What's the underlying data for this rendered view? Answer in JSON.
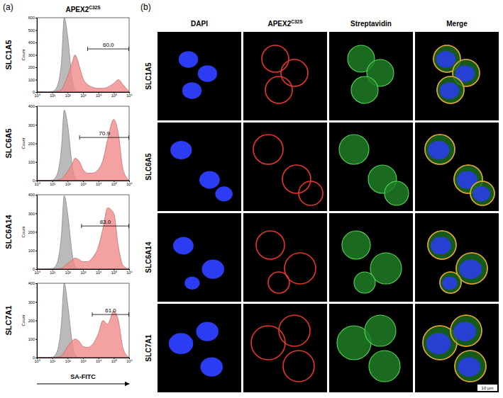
{
  "panel_labels": [
    "(a)",
    "(b)"
  ],
  "panel_a_header": {
    "text": "APEX2",
    "superscript": "C32S"
  },
  "chart_data": [
    {
      "type": "area",
      "title": "SLC1A5",
      "ylabel": "Count",
      "log": "x",
      "x": [
        1,
        3,
        10,
        20,
        40,
        60,
        100,
        200,
        300,
        600,
        1000,
        2000,
        4000,
        10000,
        20000,
        40000,
        100000,
        200000,
        400000,
        1000000
      ],
      "series": [
        {
          "color": "#a9a9a9",
          "values": [
            0,
            0,
            5,
            40,
            250,
            600,
            450,
            100,
            20,
            2,
            0,
            0,
            0,
            0,
            0,
            0,
            0,
            0,
            0,
            0
          ]
        },
        {
          "color": "#f08a8a",
          "values": [
            0,
            0,
            0,
            5,
            20,
            60,
            130,
            240,
            300,
            200,
            110,
            60,
            40,
            30,
            30,
            40,
            70,
            100,
            60,
            0
          ]
        }
      ],
      "xlim": [
        1,
        1000000
      ],
      "xticks": [
        {
          "value": 1,
          "label": "10⁰"
        },
        {
          "value": 10,
          "label": "10¹"
        },
        {
          "value": 100,
          "label": "10²"
        },
        {
          "value": 1000,
          "label": "10³"
        },
        {
          "value": 10000,
          "label": "10⁴"
        },
        {
          "value": 100000,
          "label": "10⁵"
        },
        {
          "value": 1000000,
          "label": "10⁶"
        }
      ],
      "ylim": [
        0,
        600
      ],
      "yticks": [
        0,
        100,
        200,
        300,
        400,
        500,
        600
      ],
      "gate": [
        2000,
        1000000
      ],
      "annotation": "60.0"
    },
    {
      "type": "area",
      "title": "SLC6A5",
      "ylabel": "Count",
      "log": "x",
      "x": [
        1,
        3,
        10,
        20,
        40,
        60,
        100,
        200,
        300,
        600,
        1000,
        2000,
        4000,
        10000,
        20000,
        40000,
        100000,
        200000,
        400000,
        1000000
      ],
      "series": [
        {
          "color": "#a9a9a9",
          "values": [
            0,
            0,
            3,
            30,
            180,
            380,
            300,
            80,
            15,
            0,
            0,
            0,
            0,
            0,
            0,
            0,
            0,
            0,
            0,
            0
          ]
        },
        {
          "color": "#f08a8a",
          "values": [
            0,
            0,
            0,
            3,
            10,
            25,
            50,
            90,
            120,
            100,
            60,
            40,
            40,
            60,
            110,
            220,
            330,
            250,
            60,
            0
          ]
        }
      ],
      "xlim": [
        1,
        1000000
      ],
      "xticks": [
        {
          "value": 1,
          "label": "10⁰"
        },
        {
          "value": 10,
          "label": "10¹"
        },
        {
          "value": 100,
          "label": "10²"
        },
        {
          "value": 1000,
          "label": "10³"
        },
        {
          "value": 10000,
          "label": "10⁴"
        },
        {
          "value": 100000,
          "label": "10⁵"
        },
        {
          "value": 1000000,
          "label": "10⁶"
        }
      ],
      "ylim": [
        0,
        400
      ],
      "yticks": [
        0,
        100,
        200,
        300,
        400
      ],
      "gate": [
        600,
        1000000
      ],
      "annotation": "70.9"
    },
    {
      "type": "area",
      "title": "SLC6A14",
      "ylabel": "Count",
      "log": "x",
      "x": [
        1,
        3,
        10,
        20,
        40,
        60,
        100,
        200,
        300,
        600,
        1000,
        2000,
        4000,
        10000,
        20000,
        40000,
        100000,
        200000,
        400000,
        1000000
      ],
      "series": [
        {
          "color": "#a9a9a9",
          "values": [
            0,
            0,
            3,
            30,
            190,
            395,
            300,
            80,
            15,
            0,
            0,
            0,
            0,
            0,
            0,
            0,
            0,
            0,
            0,
            0
          ]
        },
        {
          "color": "#f08a8a",
          "values": [
            0,
            0,
            0,
            2,
            5,
            15,
            30,
            50,
            60,
            50,
            40,
            40,
            60,
            120,
            220,
            330,
            300,
            120,
            20,
            0
          ]
        }
      ],
      "xlim": [
        1,
        1000000
      ],
      "xticks": [
        {
          "value": 1,
          "label": "10⁰"
        },
        {
          "value": 10,
          "label": "10¹"
        },
        {
          "value": 100,
          "label": "10²"
        },
        {
          "value": 1000,
          "label": "10³"
        },
        {
          "value": 10000,
          "label": "10⁴"
        },
        {
          "value": 100000,
          "label": "10⁵"
        },
        {
          "value": 1000000,
          "label": "10⁶"
        }
      ],
      "ylim": [
        0,
        400
      ],
      "yticks": [
        0,
        100,
        200,
        300,
        400
      ],
      "gate": [
        800,
        1000000
      ],
      "annotation": "83.0"
    },
    {
      "type": "area",
      "title": "SLC7A1",
      "ylabel": "Count",
      "xlabel": "SA-FITC",
      "log": "x",
      "x": [
        1,
        3,
        10,
        20,
        40,
        60,
        100,
        200,
        300,
        600,
        1000,
        2000,
        4000,
        10000,
        20000,
        40000,
        100000,
        200000,
        400000,
        1000000
      ],
      "series": [
        {
          "color": "#a9a9a9",
          "values": [
            0,
            0,
            3,
            30,
            190,
            400,
            290,
            80,
            15,
            0,
            0,
            0,
            0,
            0,
            0,
            0,
            0,
            0,
            0,
            0
          ]
        },
        {
          "color": "#f08a8a",
          "values": [
            0,
            0,
            0,
            3,
            10,
            30,
            60,
            90,
            100,
            85,
            60,
            55,
            70,
            130,
            200,
            180,
            250,
            200,
            50,
            0
          ]
        }
      ],
      "xlim": [
        1,
        1000000
      ],
      "xticks": [
        {
          "value": 1,
          "label": "10⁰"
        },
        {
          "value": 10,
          "label": "10¹"
        },
        {
          "value": 100,
          "label": "10²"
        },
        {
          "value": 1000,
          "label": "10³"
        },
        {
          "value": 10000,
          "label": "10⁴"
        },
        {
          "value": 100000,
          "label": "10⁵"
        },
        {
          "value": 1000000,
          "label": "10⁶"
        }
      ],
      "ylim": [
        0,
        400
      ],
      "yticks": [
        0,
        100,
        200,
        300,
        400
      ],
      "gate": [
        4000,
        1000000
      ],
      "annotation": "61.0"
    }
  ],
  "panel_b": {
    "columns": [
      "DAPI",
      {
        "text": "APEX2",
        "superscript": "C32S"
      },
      "Streptavidin",
      "Merge"
    ],
    "rows": [
      "SLC1A5",
      "SLC6A5",
      "SLC6A14",
      "SLC7A1"
    ],
    "scale_bar": "10 μm"
  }
}
